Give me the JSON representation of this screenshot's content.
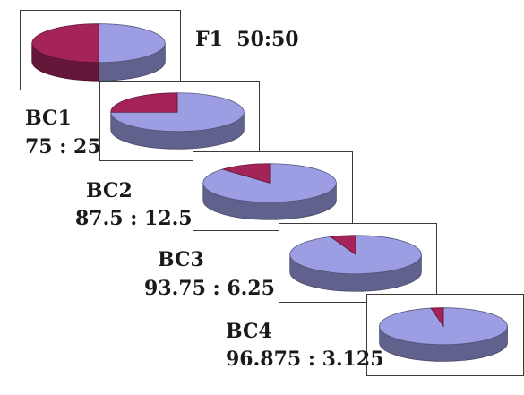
{
  "chart_data": {
    "type": "pie",
    "colors": {
      "majority": "#9d9de3",
      "minority": "#a4245a"
    },
    "charts": [
      {
        "name": "F1",
        "ratio_label": "50:50",
        "majority": 50,
        "minority": 50
      },
      {
        "name": "BC1",
        "ratio_label": "75 : 25",
        "majority": 75,
        "minority": 25
      },
      {
        "name": "BC2",
        "ratio_label": "87.5 : 12.5",
        "majority": 87.5,
        "minority": 12.5
      },
      {
        "name": "BC3",
        "ratio_label": "93.75 : 6.25",
        "majority": 93.75,
        "minority": 6.25
      },
      {
        "name": "BC4",
        "ratio_label": "96.875 : 3.125",
        "majority": 96.875,
        "minority": 3.125
      }
    ]
  }
}
